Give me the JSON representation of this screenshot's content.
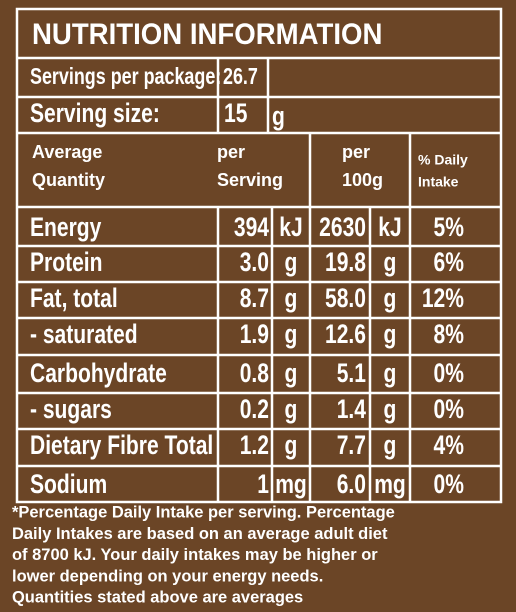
{
  "title": "NUTRITION INFORMATION",
  "servings": [
    {
      "label": "Servings per package:",
      "value": "26.7"
    },
    {
      "label": "Serving size:",
      "value": "15",
      "unit": "g"
    }
  ],
  "header": {
    "quantity": [
      "Average",
      "Quantity"
    ],
    "per_serving": [
      "per",
      "Serving"
    ],
    "per_100g": [
      "per",
      "100g"
    ],
    "daily": [
      "% Daily",
      "Intake"
    ]
  },
  "rows": [
    {
      "name": "Energy",
      "serving": "394",
      "serving_unit": "kJ",
      "per100": "2630",
      "per100_unit": "kJ",
      "daily": "5%"
    },
    {
      "name": "Protein",
      "serving": "3.0",
      "serving_unit": "g",
      "per100": "19.8",
      "per100_unit": "g",
      "daily": "6%"
    },
    {
      "name": "Fat, total",
      "serving": "8.7",
      "serving_unit": "g",
      "per100": "58.0",
      "per100_unit": "g",
      "daily": "12%"
    },
    {
      "name": "- saturated",
      "serving": "1.9",
      "serving_unit": "g",
      "per100": "12.6",
      "per100_unit": "g",
      "daily": "8%"
    },
    {
      "name": "Carbohydrate",
      "serving": "0.8",
      "serving_unit": "g",
      "per100": "5.1",
      "per100_unit": "g",
      "daily": "0%"
    },
    {
      "name": "- sugars",
      "serving": "0.2",
      "serving_unit": "g",
      "per100": "1.4",
      "per100_unit": "g",
      "daily": "0%"
    },
    {
      "name": "Dietary Fibre Total",
      "serving": "1.2",
      "serving_unit": "g",
      "per100": "7.7",
      "per100_unit": "g",
      "daily": "4%"
    },
    {
      "name": "Sodium",
      "serving": "1",
      "serving_unit": "mg",
      "per100": "6.0",
      "per100_unit": "mg",
      "daily": "0%"
    }
  ],
  "footnote": [
    "*Percentage Daily Intake per serving. Percentage",
    "Daily Intakes are based on an average adult diet",
    "of 8700 kJ. Your daily intakes may be higher or",
    "lower depending on your energy needs.",
    "Quantities stated above are averages"
  ]
}
